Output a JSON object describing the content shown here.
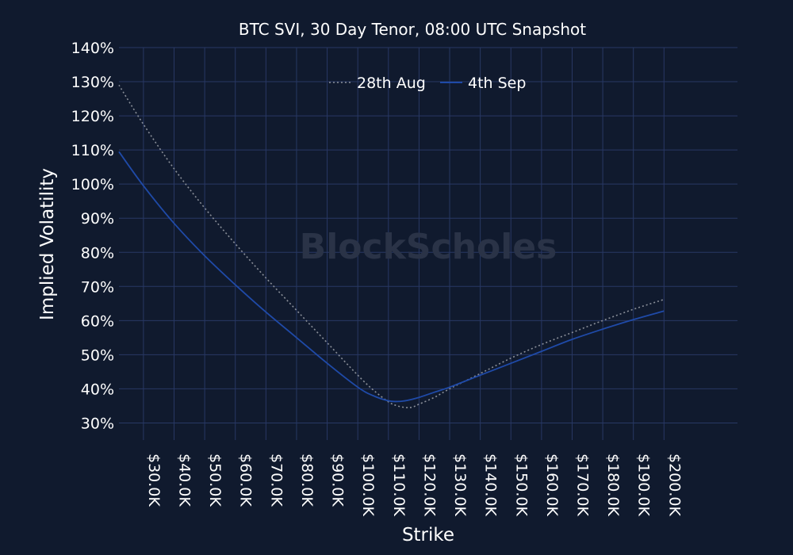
{
  "chart_data": {
    "type": "line",
    "title": "BTC SVI, 30 Day Tenor, 08:00 UTC Snapshot",
    "xlabel": "Strike",
    "ylabel": "Implied Volatility",
    "xlim": [
      22000,
      224000
    ],
    "ylim": [
      25,
      140
    ],
    "x_ticks": [
      30000,
      40000,
      50000,
      60000,
      70000,
      80000,
      90000,
      100000,
      110000,
      120000,
      130000,
      140000,
      150000,
      160000,
      170000,
      180000,
      190000,
      200000
    ],
    "x_tick_labels": [
      "$30.0K",
      "$40.0K",
      "$50.0K",
      "$60.0K",
      "$70.0K",
      "$80.0K",
      "$90.0K",
      "$100.0K",
      "$110.0K",
      "$120.0K",
      "$130.0K",
      "$140.0K",
      "$150.0K",
      "$160.0K",
      "$170.0K",
      "$180.0K",
      "$190.0K",
      "$200.0K"
    ],
    "y_ticks": [
      30,
      40,
      50,
      60,
      70,
      80,
      90,
      100,
      110,
      120,
      130,
      140
    ],
    "y_tick_labels": [
      "30%",
      "40%",
      "50%",
      "60%",
      "70%",
      "80%",
      "90%",
      "100%",
      "110%",
      "120%",
      "130%",
      "140%"
    ],
    "grid": true,
    "legend_position": "top-center",
    "watermark": "BlockScholes",
    "series": [
      {
        "name": "28th Aug",
        "color": "#8a8f99",
        "style": "dotted",
        "x": [
          22000,
          30000,
          40000,
          50000,
          60000,
          70000,
          80000,
          90000,
          100000,
          105000,
          110000,
          113000,
          116000,
          118000,
          120000,
          125000,
          130000,
          140000,
          150000,
          160000,
          170000,
          180000,
          190000,
          200000
        ],
        "y": [
          129,
          117.5,
          104.5,
          93,
          82.5,
          72.5,
          63,
          53.5,
          44,
          39.7,
          36.2,
          35.0,
          34.5,
          34.7,
          35.5,
          37.5,
          40,
          44.5,
          49,
          53,
          56.5,
          60,
          63.3,
          66.2
        ]
      },
      {
        "name": "4th Sep",
        "color": "#1f4aa8",
        "style": "solid",
        "x": [
          22000,
          30000,
          40000,
          50000,
          60000,
          70000,
          80000,
          90000,
          100000,
          105000,
          110000,
          113000,
          116000,
          120000,
          125000,
          130000,
          140000,
          150000,
          160000,
          170000,
          180000,
          190000,
          200000
        ],
        "y": [
          109.5,
          99.5,
          88.5,
          79,
          70.5,
          62.5,
          55,
          47.5,
          40.5,
          38,
          36.5,
          36.3,
          36.6,
          37.5,
          39,
          40.5,
          44,
          47.5,
          51,
          54.5,
          57.5,
          60.3,
          62.8
        ]
      }
    ]
  }
}
